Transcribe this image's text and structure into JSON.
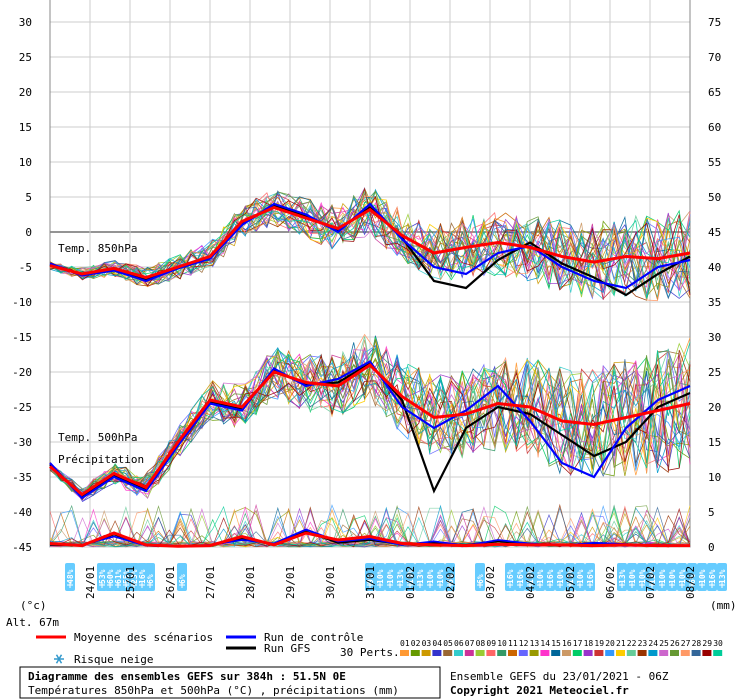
{
  "chart_data": {
    "type": "line",
    "title": "Diagramme des ensembles GEFS sur 384h : 51.5N 0E",
    "subtitle": "Températures 850hPa et 500hPa (°C) , précipitations (mm)",
    "ensemble_label": "Ensemble GEFS du 23/01/2021 - 06Z",
    "copyright": "Copyright 2021 Meteociel.fr",
    "altitude_label": "Alt. 67m",
    "left_unit": "(°c)",
    "right_unit": "(mm)",
    "y_left": {
      "min": -45,
      "max": 30,
      "ticks": [
        30,
        25,
        20,
        15,
        10,
        5,
        0,
        -5,
        -10,
        -15,
        -20,
        -25,
        -30,
        -35,
        -40,
        -45
      ]
    },
    "y_right": {
      "min": 0,
      "max": 75,
      "ticks": [
        75,
        70,
        65,
        60,
        55,
        50,
        45,
        40,
        35,
        30,
        25,
        20,
        15,
        10,
        5,
        0
      ]
    },
    "x_range_days": [
      0,
      16
    ],
    "date_ticks": [
      "24/01",
      "25/01",
      "26/01",
      "27/01",
      "28/01",
      "29/01",
      "30/01",
      "31/01",
      "01/02",
      "02/02",
      "03/02",
      "04/02",
      "05/02",
      "06/02",
      "07/02",
      "08/02"
    ],
    "panel_labels": [
      "Temp. 850hPa",
      "Temp. 500hPa",
      "Précipitation"
    ],
    "series": [
      {
        "name": "Moyenne des scénarios",
        "color": "#ff0000",
        "t850": [
          -4.8,
          -6.0,
          -5.2,
          -6.5,
          -5.0,
          -3.5,
          1.5,
          3.5,
          2.0,
          0.5,
          3.2,
          -0.5,
          -3.0,
          -2.2,
          -1.5,
          -2.2,
          -3.5,
          -4.3,
          -3.5,
          -3.8,
          -3.0
        ],
        "t500": [
          -33.5,
          -37.5,
          -34.5,
          -36.5,
          -30.0,
          -24.0,
          -25.0,
          -20.0,
          -21.5,
          -22.0,
          -19.0,
          -23.5,
          -26.5,
          -26.0,
          -24.5,
          -25.0,
          -27.0,
          -27.5,
          -26.5,
          -25.5,
          -24.5
        ],
        "precip": [
          0.5,
          0.2,
          2.0,
          0.3,
          0.1,
          0.2,
          1.5,
          0.3,
          2.0,
          1.0,
          1.5,
          0.5,
          0.3,
          0.2,
          0.4,
          0.3,
          0.3,
          0.2,
          0.3,
          0.2,
          0.2
        ]
      },
      {
        "name": "Run de contrôle",
        "color": "#0000ff",
        "t850": [
          -4.5,
          -6.2,
          -5.5,
          -7.0,
          -5.2,
          -3.8,
          1.0,
          4.0,
          2.5,
          0.0,
          4.0,
          -1.0,
          -5.0,
          -6.0,
          -3.0,
          -2.0,
          -5.0,
          -7.0,
          -8.0,
          -5.0,
          -4.0
        ],
        "t500": [
          -33.0,
          -38.0,
          -35.0,
          -37.0,
          -30.5,
          -24.5,
          -25.5,
          -19.5,
          -22.0,
          -21.0,
          -18.5,
          -25.0,
          -28.0,
          -25.5,
          -22.0,
          -27.0,
          -33.0,
          -35.0,
          -28.0,
          -24.0,
          -22.0
        ],
        "precip": [
          0.4,
          0.3,
          1.5,
          0.2,
          0.1,
          0.3,
          1.0,
          0.5,
          2.5,
          0.8,
          1.2,
          0.3,
          0.8,
          0.2,
          1.0,
          0.5,
          0.2,
          0.6,
          0.4,
          0.3,
          0.2
        ]
      },
      {
        "name": "Run GFS",
        "color": "#000000",
        "t850": [
          -4.7,
          -6.1,
          -5.4,
          -6.8,
          -5.1,
          -3.6,
          1.2,
          3.8,
          2.2,
          0.3,
          3.5,
          -0.8,
          -7.0,
          -8.0,
          -4.0,
          -1.5,
          -4.5,
          -6.5,
          -9.0,
          -6.0,
          -3.5
        ],
        "t500": [
          -33.2,
          -37.8,
          -34.8,
          -36.8,
          -30.2,
          -24.2,
          -25.2,
          -19.8,
          -21.8,
          -21.5,
          -18.8,
          -24.0,
          -37.0,
          -28.0,
          -25.0,
          -26.0,
          -29.0,
          -32.0,
          -30.0,
          -25.0,
          -23.0
        ],
        "precip": [
          0.3,
          0.2,
          1.8,
          0.2,
          0.1,
          0.2,
          1.2,
          0.4,
          2.2,
          0.6,
          1.0,
          0.4,
          0.6,
          0.3,
          0.8,
          0.4,
          0.2,
          0.5,
          0.3,
          0.2,
          0.2
        ]
      }
    ],
    "perturbations_label": "30 Perts.",
    "perturbation_ids": [
      "01",
      "02",
      "03",
      "04",
      "05",
      "06",
      "07",
      "08",
      "09",
      "10",
      "11",
      "12",
      "13",
      "14",
      "15",
      "16",
      "17",
      "18",
      "19",
      "20",
      "21",
      "22",
      "23",
      "24",
      "25",
      "26",
      "27",
      "28",
      "29",
      "30"
    ],
    "perturbation_colors": [
      "#ff9933",
      "#669900",
      "#cc9900",
      "#3333cc",
      "#996633",
      "#33cccc",
      "#cc3399",
      "#99cc33",
      "#ff6666",
      "#339966",
      "#cc6600",
      "#6666ff",
      "#999900",
      "#ff33cc",
      "#006699",
      "#cc9966",
      "#00cc66",
      "#9933cc",
      "#cc3333",
      "#3399ff",
      "#ffcc00",
      "#66cc99",
      "#993300",
      "#0099cc",
      "#cc66cc",
      "#669933",
      "#ff9966",
      "#336699",
      "#990000",
      "#00cc99"
    ],
    "snow_risk": [
      {
        "day": 0.5,
        "pct": "48%"
      },
      {
        "day": 1.3,
        "pct": "53%"
      },
      {
        "day": 1.5,
        "pct": "60%"
      },
      {
        "day": 1.7,
        "pct": "61%"
      },
      {
        "day": 1.9,
        "pct": "55%"
      },
      {
        "day": 2.1,
        "pct": "23%"
      },
      {
        "day": 2.3,
        "pct": "16%"
      },
      {
        "day": 2.5,
        "pct": "6%"
      },
      {
        "day": 3.3,
        "pct": "6%"
      },
      {
        "day": 8.0,
        "pct": "9%"
      },
      {
        "day": 8.25,
        "pct": "10%"
      },
      {
        "day": 8.5,
        "pct": "10%"
      },
      {
        "day": 8.75,
        "pct": "13%"
      },
      {
        "day": 9.0,
        "pct": "10%"
      },
      {
        "day": 9.25,
        "pct": "13%"
      },
      {
        "day": 9.5,
        "pct": "10%"
      },
      {
        "day": 9.75,
        "pct": "10%"
      },
      {
        "day": 10.0,
        "pct": "6%"
      },
      {
        "day": 10.75,
        "pct": "6%"
      },
      {
        "day": 11.5,
        "pct": "16%"
      },
      {
        "day": 11.75,
        "pct": "16%"
      },
      {
        "day": 12.0,
        "pct": "10%"
      },
      {
        "day": 12.25,
        "pct": "10%"
      },
      {
        "day": 12.5,
        "pct": "16%"
      },
      {
        "day": 12.75,
        "pct": "10%"
      },
      {
        "day": 13.0,
        "pct": "16%"
      },
      {
        "day": 13.25,
        "pct": "10%"
      },
      {
        "day": 13.5,
        "pct": "16%"
      },
      {
        "day": 14.3,
        "pct": "13%"
      },
      {
        "day": 14.55,
        "pct": "10%"
      },
      {
        "day": 14.8,
        "pct": "10%"
      },
      {
        "day": 15.05,
        "pct": "13%"
      },
      {
        "day": 15.3,
        "pct": "10%"
      },
      {
        "day": 15.55,
        "pct": "10%"
      },
      {
        "day": 15.8,
        "pct": "10%"
      },
      {
        "day": 16.05,
        "pct": "6%"
      },
      {
        "day": 16.3,
        "pct": "10%"
      },
      {
        "day": 16.55,
        "pct": "16%"
      },
      {
        "day": 16.8,
        "pct": "13%"
      }
    ],
    "legend": {
      "mean": "Moyenne des scénarios",
      "control": "Run de contrôle",
      "gfs": "Run GFS",
      "snow": "Risque neige"
    },
    "grid": true
  }
}
